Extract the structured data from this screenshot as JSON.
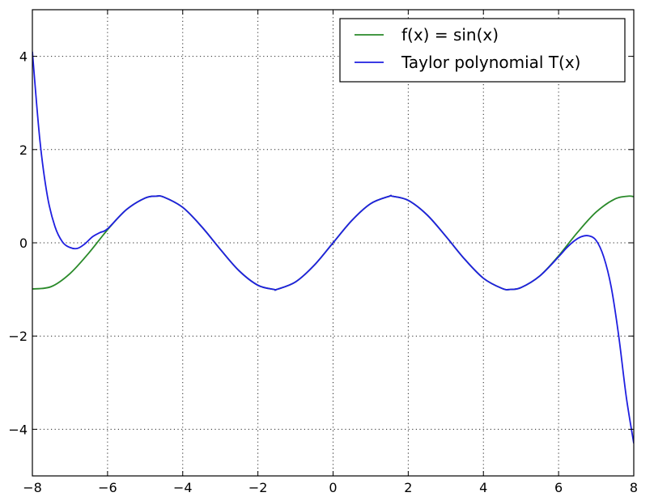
{
  "chart_data": {
    "type": "line",
    "title": "",
    "xlabel": "",
    "ylabel": "",
    "xlim": [
      -8,
      8
    ],
    "ylim": [
      -5,
      5
    ],
    "xticks": [
      -8,
      -6,
      -4,
      -2,
      0,
      2,
      4,
      6,
      8
    ],
    "yticks": [
      -4,
      -2,
      0,
      2,
      4
    ],
    "xtick_labels": [
      "−8",
      "−6",
      "−4",
      "−2",
      "0",
      "2",
      "4",
      "6",
      "8"
    ],
    "ytick_labels": [
      "−4",
      "−2",
      "0",
      "2",
      "4"
    ],
    "grid": true,
    "legend_position": "top-right",
    "series": [
      {
        "name": "f(x) = sin(x)",
        "color": "#2a8a2a",
        "x": [
          -8,
          -7.5,
          -7,
          -6.5,
          -6,
          -5.5,
          -5,
          -4.71,
          -4.5,
          -4,
          -3.5,
          -3,
          -2.5,
          -2,
          -1.57,
          -1.5,
          -1,
          -0.5,
          0,
          0.5,
          1,
          1.5,
          1.57,
          2,
          2.5,
          3,
          3.5,
          4,
          4.5,
          4.71,
          5,
          5.5,
          6,
          6.5,
          7,
          7.5,
          7.85,
          8
        ],
        "values": [
          -0.99,
          -0.94,
          -0.66,
          -0.22,
          0.28,
          0.71,
          0.96,
          1.0,
          0.98,
          0.76,
          0.35,
          -0.14,
          -0.6,
          -0.91,
          -1.0,
          -1.0,
          -0.84,
          -0.48,
          0.0,
          0.48,
          0.84,
          1.0,
          1.0,
          0.91,
          0.6,
          0.14,
          -0.35,
          -0.76,
          -0.98,
          -1.0,
          -0.96,
          -0.71,
          -0.28,
          0.22,
          0.66,
          0.94,
          1.0,
          0.99
        ]
      },
      {
        "name": "Taylor polynomial T(x)",
        "color": "#1f1fe0",
        "x": [
          -8,
          -7.8,
          -7.6,
          -7.4,
          -7.2,
          -7.0,
          -6.8,
          -6.6,
          -6.4,
          -6.2,
          -6.0,
          -5.5,
          -5,
          -4.71,
          -4.5,
          -4,
          -3.5,
          -3,
          -2.5,
          -2,
          -1.57,
          -1.5,
          -1,
          -0.5,
          0,
          0.5,
          1,
          1.5,
          1.57,
          2,
          2.5,
          3,
          3.5,
          4,
          4.5,
          4.71,
          5,
          5.5,
          6.0,
          6.2,
          6.4,
          6.6,
          6.8,
          7.0,
          7.2,
          7.4,
          7.6,
          7.8,
          8
        ],
        "values": [
          4.1,
          2.2,
          1.0,
          0.35,
          0.02,
          -0.1,
          -0.12,
          -0.02,
          0.13,
          0.22,
          0.3,
          0.71,
          0.96,
          1.0,
          0.98,
          0.76,
          0.35,
          -0.14,
          -0.6,
          -0.91,
          -1.0,
          -1.0,
          -0.84,
          -0.48,
          0.0,
          0.48,
          0.84,
          1.0,
          1.0,
          0.91,
          0.6,
          0.14,
          -0.35,
          -0.76,
          -0.98,
          -1.0,
          -0.96,
          -0.71,
          -0.3,
          -0.12,
          0.03,
          0.13,
          0.15,
          0.05,
          -0.3,
          -0.95,
          -2.0,
          -3.3,
          -4.3
        ]
      }
    ]
  }
}
